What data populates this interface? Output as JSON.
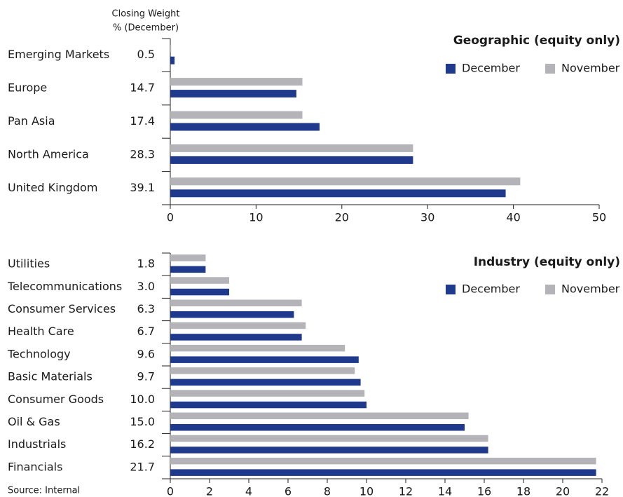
{
  "chart_data": [
    {
      "type": "bar",
      "orientation": "horizontal",
      "title": "Geographic (equity only)",
      "column_header": [
        "Closing Weight",
        "% (December)"
      ],
      "categories": [
        "Emerging Markets",
        "Europe",
        "Pan Asia",
        "North America",
        "United Kingdom"
      ],
      "series": [
        {
          "name": "December",
          "color": "#1f3a8c",
          "values": [
            0.5,
            14.7,
            17.4,
            28.3,
            39.1
          ],
          "value_labels": [
            "0.5",
            "14.7",
            "17.4",
            "28.3",
            "39.1"
          ]
        },
        {
          "name": "November",
          "color": "#b4b4b8",
          "values": [
            0.1,
            15.4,
            15.4,
            28.3,
            40.8
          ]
        }
      ],
      "xlim": [
        0,
        50
      ],
      "xticks": [
        0,
        10,
        20,
        30,
        40,
        50
      ],
      "legend": "upper right"
    },
    {
      "type": "bar",
      "orientation": "horizontal",
      "title": "Industry (equity only)",
      "categories": [
        "Utilities",
        "Telecommunications",
        "Consumer Services",
        "Health Care",
        "Technology",
        "Basic Materials",
        "Consumer Goods",
        "Oil & Gas",
        "Industrials",
        "Financials"
      ],
      "series": [
        {
          "name": "December",
          "color": "#1f3a8c",
          "values": [
            1.8,
            3.0,
            6.3,
            6.7,
            9.6,
            9.7,
            10.0,
            15.0,
            16.2,
            21.7
          ],
          "value_labels": [
            "1.8",
            "3.0",
            "6.3",
            "6.7",
            "9.6",
            "9.7",
            "10.0",
            "15.0",
            "16.2",
            "21.7"
          ]
        },
        {
          "name": "November",
          "color": "#b4b4b8",
          "values": [
            1.8,
            3.0,
            6.7,
            6.9,
            8.9,
            9.4,
            9.9,
            15.2,
            16.2,
            21.7
          ]
        }
      ],
      "xlim": [
        0,
        22
      ],
      "xticks": [
        0,
        2,
        4,
        6,
        8,
        10,
        12,
        14,
        16,
        18,
        20,
        22
      ],
      "legend": "upper right",
      "source": "Source: Internal"
    }
  ]
}
